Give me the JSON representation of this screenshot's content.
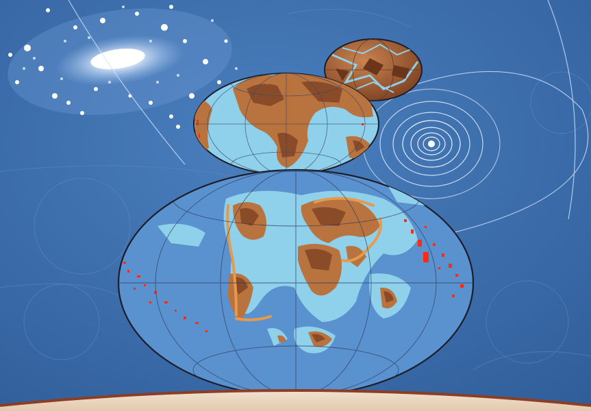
{
  "scene": {
    "colors": {
      "background": "#3d6fae",
      "background_dark": "#2f5d99",
      "ocean": "#8fd0ea",
      "deep_ocean": "#5a91cf",
      "land": "#b9733f",
      "land_dark": "#8a4c28",
      "land_light": "#e59a4c",
      "volcanic": "#ff2a12",
      "orbit": "#cfe3ff",
      "horizon": "#ead6c2",
      "horizon_rim": "#8a3e25"
    },
    "elements": [
      "spiral-galaxy",
      "star-system-orbits",
      "small-early-planet",
      "middle-earth-globe",
      "large-earth-globe",
      "planet-horizon"
    ]
  }
}
